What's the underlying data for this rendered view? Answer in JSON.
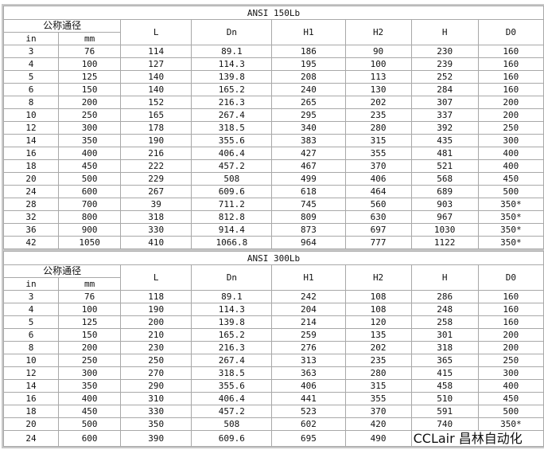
{
  "headers": {
    "nominal": "公称通径",
    "in": "in",
    "mm": "mm",
    "cols": [
      "L",
      "Dn",
      "H1",
      "H2",
      "H",
      "D0"
    ]
  },
  "tables": [
    {
      "title": "ANSI  150Lb",
      "rows": [
        [
          "3",
          "76",
          "114",
          "89.1",
          "186",
          "90",
          "230",
          "160"
        ],
        [
          "4",
          "100",
          "127",
          "114.3",
          "195",
          "100",
          "239",
          "160"
        ],
        [
          "5",
          "125",
          "140",
          "139.8",
          "208",
          "113",
          "252",
          "160"
        ],
        [
          "6",
          "150",
          "140",
          "165.2",
          "240",
          "130",
          "284",
          "160"
        ],
        [
          "8",
          "200",
          "152",
          "216.3",
          "265",
          "202",
          "307",
          "200"
        ],
        [
          "10",
          "250",
          "165",
          "267.4",
          "295",
          "235",
          "337",
          "200"
        ],
        [
          "12",
          "300",
          "178",
          "318.5",
          "340",
          "280",
          "392",
          "250"
        ],
        [
          "14",
          "350",
          "190",
          "355.6",
          "383",
          "315",
          "435",
          "300"
        ],
        [
          "16",
          "400",
          "216",
          "406.4",
          "427",
          "355",
          "481",
          "400"
        ],
        [
          "18",
          "450",
          "222",
          "457.2",
          "467",
          "370",
          "521",
          "400"
        ],
        [
          "20",
          "500",
          "229",
          "508",
          "499",
          "406",
          "568",
          "450"
        ],
        [
          "24",
          "600",
          "267",
          "609.6",
          "618",
          "464",
          "689",
          "500"
        ],
        [
          "28",
          "700",
          "39",
          "711.2",
          "745",
          "560",
          "903",
          "350*"
        ],
        [
          "32",
          "800",
          "318",
          "812.8",
          "809",
          "630",
          "967",
          "350*"
        ],
        [
          "36",
          "900",
          "330",
          "914.4",
          "873",
          "697",
          "1030",
          "350*"
        ],
        [
          "42",
          "1050",
          "410",
          "1066.8",
          "964",
          "777",
          "1122",
          "350*"
        ]
      ]
    },
    {
      "title": "ANSI  300Lb",
      "rows": [
        [
          "3",
          "76",
          "118",
          "89.1",
          "242",
          "108",
          "286",
          "160"
        ],
        [
          "4",
          "100",
          "190",
          "114.3",
          "204",
          "108",
          "248",
          "160"
        ],
        [
          "5",
          "125",
          "200",
          "139.8",
          "214",
          "120",
          "258",
          "160"
        ],
        [
          "6",
          "150",
          "210",
          "165.2",
          "259",
          "135",
          "301",
          "200"
        ],
        [
          "8",
          "200",
          "230",
          "216.3",
          "276",
          "202",
          "318",
          "200"
        ],
        [
          "10",
          "250",
          "250",
          "267.4",
          "313",
          "235",
          "365",
          "250"
        ],
        [
          "12",
          "300",
          "270",
          "318.5",
          "363",
          "280",
          "415",
          "300"
        ],
        [
          "14",
          "350",
          "290",
          "355.6",
          "406",
          "315",
          "458",
          "400"
        ],
        [
          "16",
          "400",
          "310",
          "406.4",
          "441",
          "355",
          "510",
          "450"
        ],
        [
          "18",
          "450",
          "330",
          "457.2",
          "523",
          "370",
          "591",
          "500"
        ],
        [
          "20",
          "500",
          "350",
          "508",
          "602",
          "420",
          "740",
          "350*"
        ],
        [
          "24",
          "600",
          "390",
          "609.6",
          "695",
          "490",
          "",
          ""
        ]
      ]
    }
  ],
  "watermark": "CCLair 昌林自动化"
}
